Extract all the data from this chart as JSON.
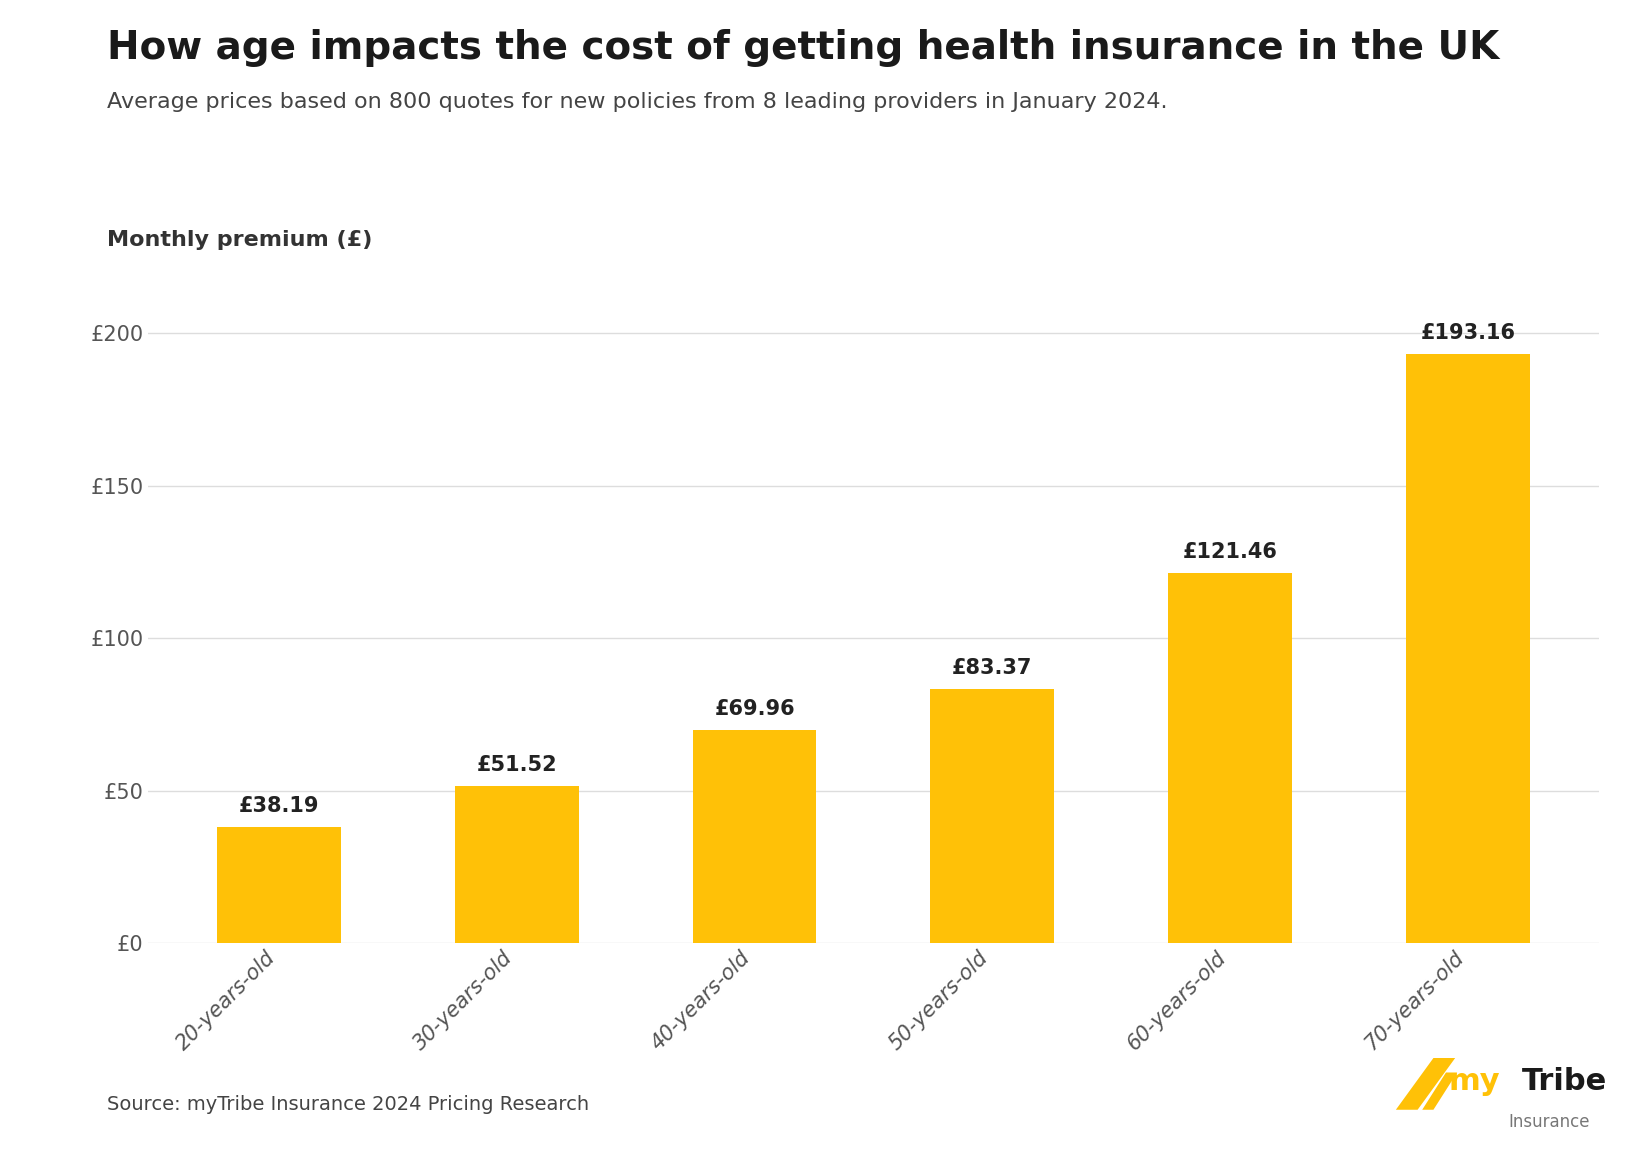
{
  "title": "How age impacts the cost of getting health insurance in the UK",
  "subtitle": "Average prices based on 800 quotes for new policies from 8 leading providers in January 2024.",
  "ylabel": "Monthly premium (£)",
  "source": "Source: myTribe Insurance 2024 Pricing Research",
  "categories": [
    "20-years-old",
    "30-years-old",
    "40-years-old",
    "50-years-old",
    "60-years-old",
    "70-years-old"
  ],
  "values": [
    38.19,
    51.52,
    69.96,
    83.37,
    121.46,
    193.16
  ],
  "labels": [
    "£38.19",
    "£51.52",
    "£69.96",
    "£83.37",
    "£121.46",
    "£193.16"
  ],
  "bar_color": "#FFC107",
  "background_color": "#FFFFFF",
  "title_color": "#1a1a1a",
  "subtitle_color": "#444444",
  "label_color": "#222222",
  "axis_label_color": "#333333",
  "tick_color": "#555555",
  "grid_color": "#DDDDDD",
  "source_color": "#444444",
  "ylim_max": 215,
  "yticks": [
    0,
    50,
    100,
    150,
    200
  ],
  "ytick_labels": [
    "£0",
    "£50",
    "£100",
    "£150",
    "£200"
  ],
  "title_fontsize": 28,
  "subtitle_fontsize": 16,
  "ylabel_fontsize": 16,
  "tick_fontsize": 15,
  "bar_label_fontsize": 15,
  "source_fontsize": 14,
  "logo_my_color": "#FFC107",
  "logo_tribe_color": "#1a1a1a",
  "logo_insurance_color": "#777777",
  "bar_width": 0.52
}
